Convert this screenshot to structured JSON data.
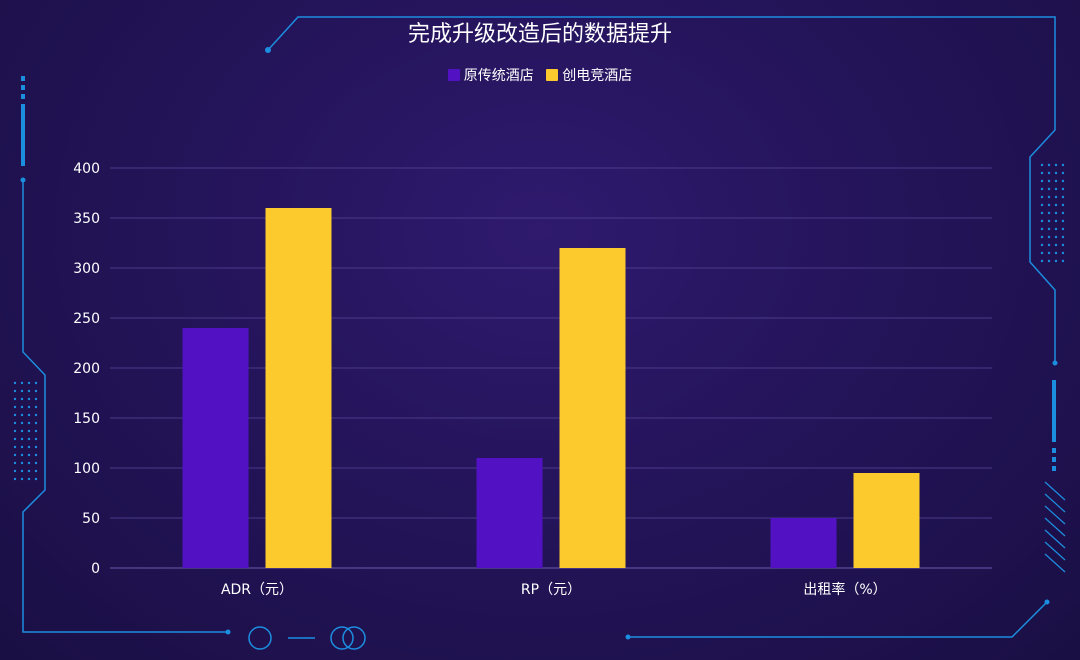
{
  "chart_data": {
    "type": "bar",
    "title": "完成升级改造后的数据提升",
    "categories": [
      "ADR（元）",
      "RP（元）",
      "出租率（%）"
    ],
    "series": [
      {
        "name": "原传统酒店",
        "values": [
          240,
          110,
          50
        ],
        "color": "#5311c4"
      },
      {
        "name": "创电竞酒店",
        "values": [
          360,
          320,
          95
        ],
        "color": "#fcca2c"
      }
    ],
    "y_ticks": [
      0,
      50,
      100,
      150,
      200,
      250,
      300,
      350,
      400
    ],
    "ylim": [
      0,
      400
    ],
    "grid": true,
    "legend_position": "top-center"
  },
  "colors": {
    "accent": "#1c8ee0",
    "text": "#ffffff",
    "gridline": "#4a3a8a"
  }
}
